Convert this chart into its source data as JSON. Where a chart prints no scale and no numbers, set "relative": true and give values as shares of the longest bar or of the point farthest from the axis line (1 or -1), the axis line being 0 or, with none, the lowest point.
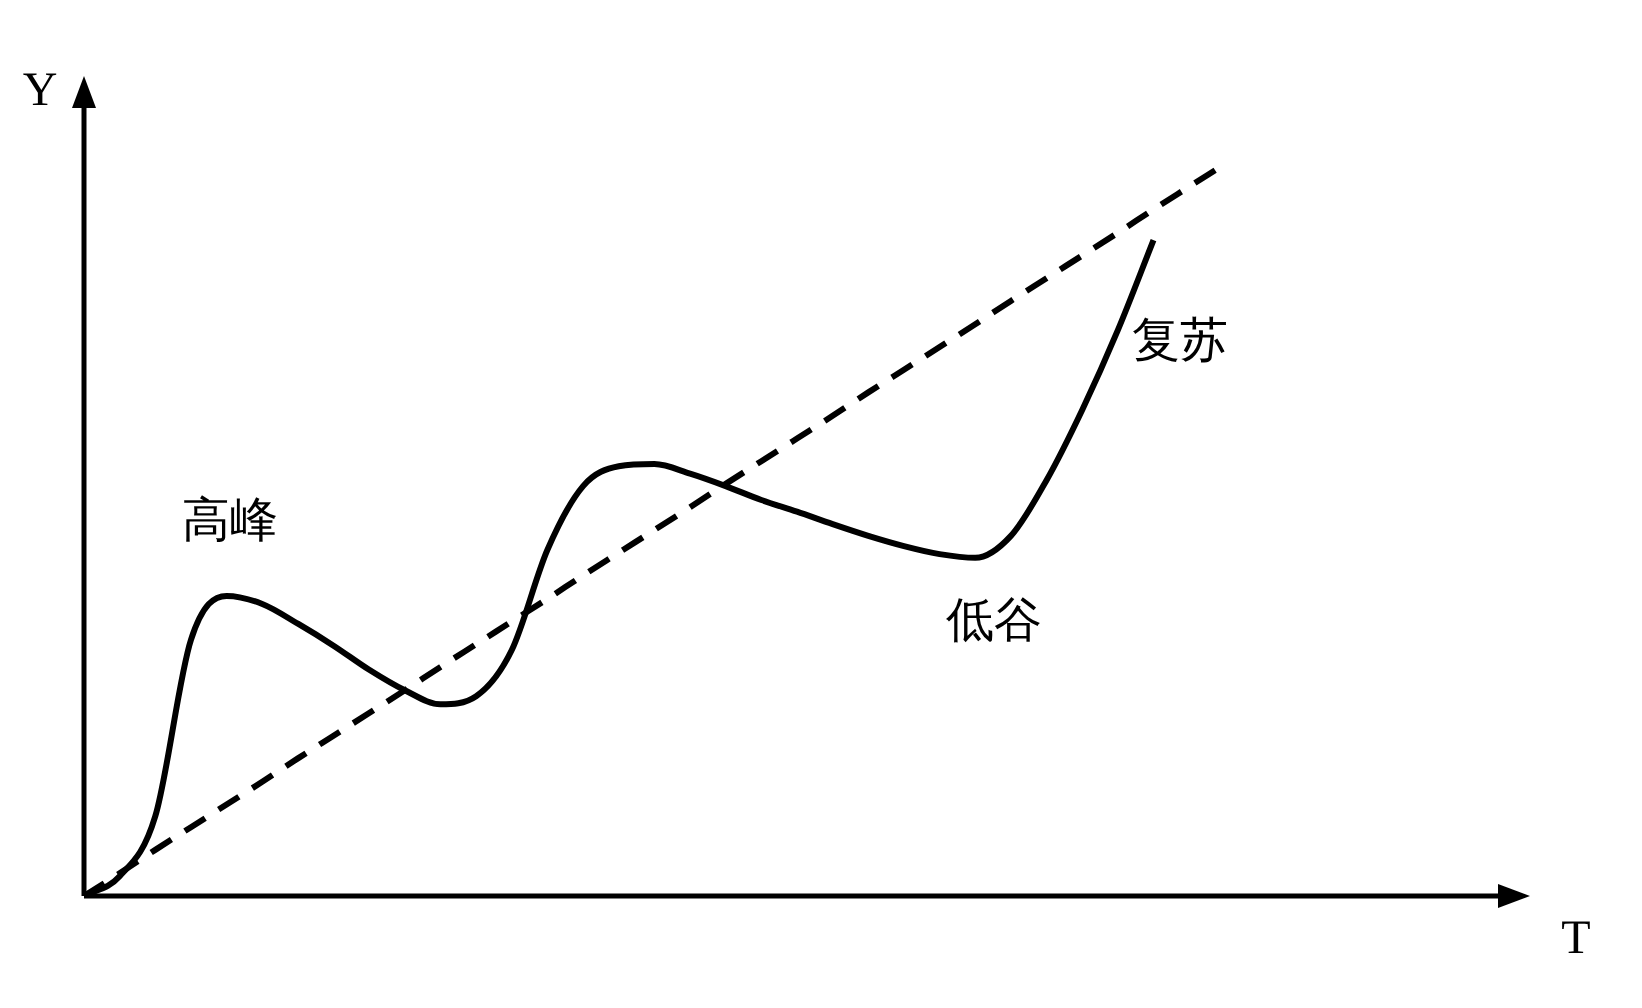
{
  "chart_data": {
    "type": "line",
    "relative": true,
    "xlabel": "T",
    "ylabel": "Y",
    "legend": false,
    "marker": "none",
    "categories": [
      null,
      null,
      null,
      null,
      null,
      null,
      null,
      null,
      null,
      null,
      null,
      null,
      null,
      null,
      null,
      null,
      null,
      null,
      null,
      null,
      null,
      null,
      null,
      null,
      null,
      null,
      null,
      null,
      null,
      null,
      null,
      null,
      null,
      null,
      null,
      null,
      null,
      null,
      null,
      null,
      null
    ],
    "series": [
      {
        "color": "#000000",
        "line_style": "solid",
        "values": [
          0,
          0.027,
          0.109,
          0.35,
          0.41,
          0.399,
          0.372,
          0.342,
          0.309,
          0.281,
          0.262,
          0.273,
          0.336,
          0.473,
          0.56,
          0.587,
          0.59,
          0.577,
          0.56,
          0.541,
          0.525,
          0.508,
          0.492,
          0.478,
          0.467,
          0.462,
          0.492,
          0.568,
          0.664,
          0.773,
          0.896,
          null,
          null,
          null,
          null,
          null,
          null,
          null,
          null,
          null,
          null
        ]
      },
      {
        "color": "#000000",
        "line_style": "dashed",
        "values": [
          0,
          0.031,
          0.063,
          0.094,
          0.125,
          0.156,
          0.188,
          0.219,
          0.25,
          0.281,
          0.313,
          0.344,
          0.375,
          0.406,
          0.438,
          0.469,
          0.5,
          0.531,
          0.563,
          0.594,
          0.625,
          0.656,
          0.688,
          0.719,
          0.75,
          0.781,
          0.813,
          0.844,
          0.875,
          0.906,
          0.938,
          0.969,
          1,
          null,
          null,
          null,
          null,
          null,
          null,
          null,
          null
        ]
      }
    ],
    "annotations": [
      "高峰",
      "低谷",
      "复苏"
    ]
  }
}
